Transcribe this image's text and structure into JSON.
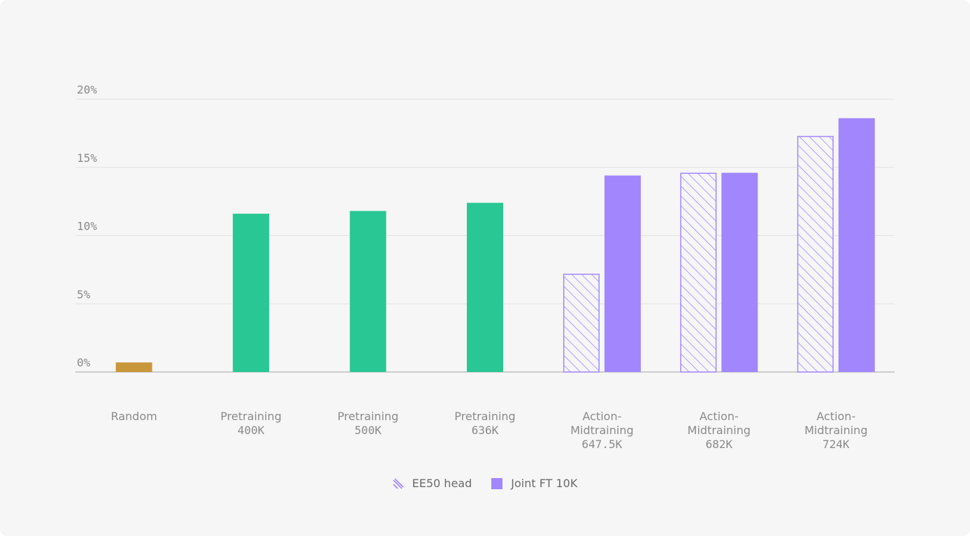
{
  "chart_data": {
    "type": "bar",
    "title": "",
    "xlabel": "",
    "ylabel": "",
    "ylim": [
      0,
      20
    ],
    "yticks": [
      {
        "value": 0,
        "label": "0%"
      },
      {
        "value": 5,
        "label": "5%"
      },
      {
        "value": 10,
        "label": "10%"
      },
      {
        "value": 15,
        "label": "15%"
      },
      {
        "value": 20,
        "label": "20%"
      }
    ],
    "grid": true,
    "legend_position": "bottom-center",
    "categories": [
      {
        "lines": [
          "Random"
        ]
      },
      {
        "lines": [
          "Pretraining",
          "400K"
        ]
      },
      {
        "lines": [
          "Pretraining",
          "500K"
        ]
      },
      {
        "lines": [
          "Pretraining",
          "636K"
        ]
      },
      {
        "lines": [
          "Action-",
          "Midtraining",
          "647.5K"
        ]
      },
      {
        "lines": [
          "Action-",
          "Midtraining",
          "682K"
        ]
      },
      {
        "lines": [
          "Action-",
          "Midtraining",
          "724K"
        ]
      }
    ],
    "series": [
      {
        "name": "EE50 head",
        "style": "hatched",
        "color": "#a286fd",
        "values": [
          null,
          null,
          null,
          null,
          7.2,
          14.6,
          17.3
        ]
      },
      {
        "name": "Joint FT 10K",
        "style": "solid",
        "color": "#a286fd",
        "values": [
          null,
          null,
          null,
          null,
          14.4,
          14.6,
          18.6
        ]
      },
      {
        "style": "solid",
        "color": "#28c793",
        "values": [
          null,
          11.6,
          11.8,
          12.4,
          null,
          null,
          null
        ]
      },
      {
        "style": "solid",
        "color": "#c9963a",
        "values": [
          0.7,
          null,
          null,
          null,
          null,
          null,
          null
        ]
      }
    ]
  },
  "legend": {
    "items": [
      {
        "label": "EE50 head",
        "icon": "hatch-swatch-icon",
        "color": "#a286fd"
      },
      {
        "label": "Joint FT 10K",
        "icon": "solid-swatch-icon",
        "color": "#a286fd"
      }
    ]
  }
}
